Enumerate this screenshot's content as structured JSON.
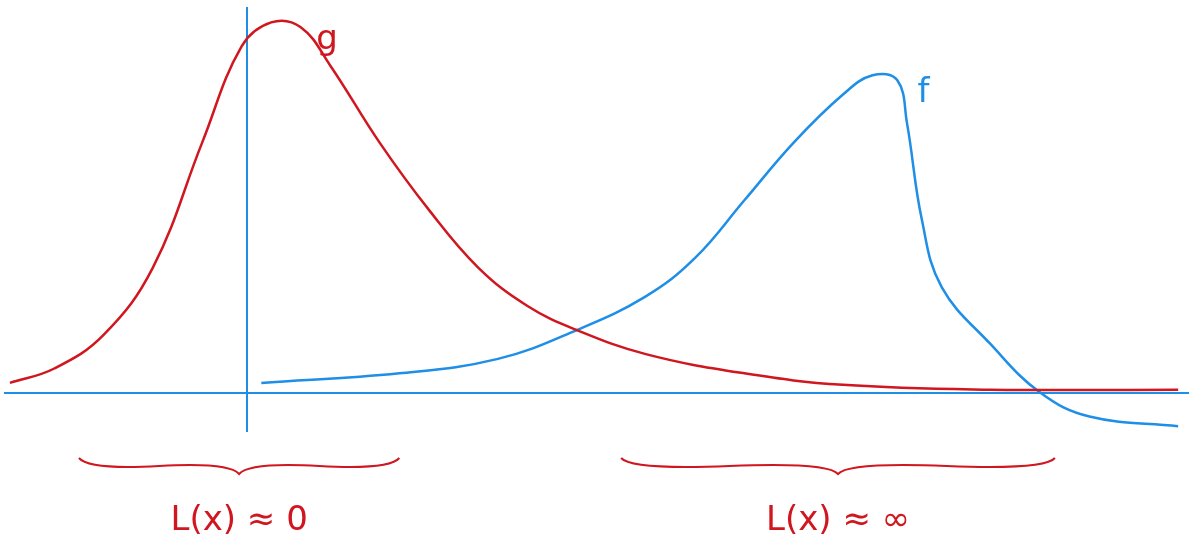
{
  "chart_data": {
    "type": "line",
    "xlim": [
      -245,
      955
    ],
    "ylim": [
      -40,
      400
    ],
    "tick_labels": false,
    "grid": false,
    "series": [
      {
        "name": "g",
        "color": "#d0161e",
        "x": [
          -240,
          -195,
          -145,
          -95,
          -45,
          -5,
          25,
          55,
          85,
          135,
          185,
          235,
          285,
          335,
          405,
          505,
          605,
          755,
          945
        ],
        "values": [
          10,
          25,
          60,
          130,
          260,
          360,
          385,
          380,
          340,
          260,
          190,
          130,
          90,
          65,
          40,
          20,
          8,
          3,
          3
        ]
      },
      {
        "name": "f",
        "color": "#1e8ee6",
        "x": [
          15,
          155,
          255,
          335,
          405,
          455,
          505,
          555,
          605,
          635,
          660,
          670,
          685,
          705,
          755,
          805,
          855,
          945
        ],
        "values": [
          10,
          20,
          35,
          65,
          100,
          140,
          200,
          260,
          310,
          330,
          325,
          280,
          180,
          110,
          50,
          0,
          -25,
          -35
        ]
      }
    ],
    "annotations": [
      {
        "text": "L(x) ≈ 0",
        "x": [
          -170,
          155
        ]
      },
      {
        "text": "L(x) ≈ ∞",
        "x": [
          380,
          820
        ]
      }
    ]
  }
}
